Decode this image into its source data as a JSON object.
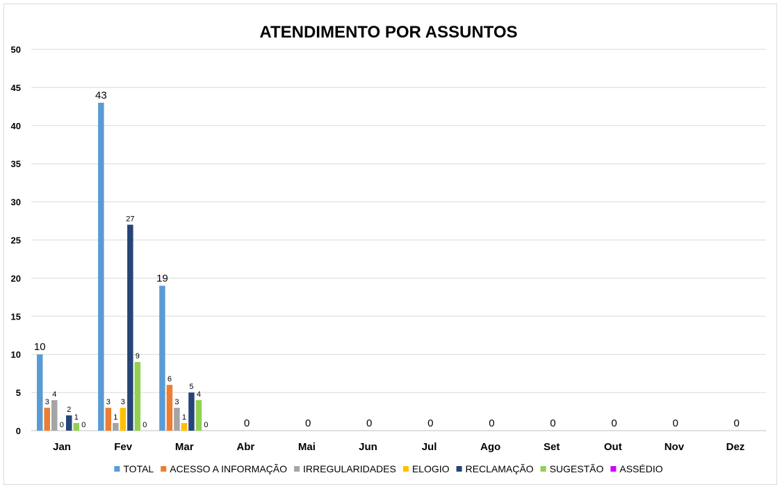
{
  "chart_data": {
    "type": "bar",
    "title": "ATENDIMENTO POR ASSUNTOS",
    "categories": [
      "Jan",
      "Fev",
      "Mar",
      "Abr",
      "Mai",
      "Jun",
      "Jul",
      "Ago",
      "Set",
      "Out",
      "Nov",
      "Dez"
    ],
    "ylim": [
      0,
      50
    ],
    "yticks": [
      0,
      5,
      10,
      15,
      20,
      25,
      30,
      35,
      40,
      45,
      50
    ],
    "grid": true,
    "legend_position": "bottom",
    "series": [
      {
        "name": "TOTAL",
        "color": "#5B9BD5",
        "values": [
          10,
          43,
          19,
          0,
          0,
          0,
          0,
          0,
          0,
          0,
          0,
          0
        ]
      },
      {
        "name": "ACESSO A INFORMAÇÃO",
        "color": "#ED7D31",
        "values": [
          3,
          3,
          6,
          null,
          null,
          null,
          null,
          null,
          null,
          null,
          null,
          null
        ]
      },
      {
        "name": "IRREGULARIDADES",
        "color": "#A5A5A5",
        "values": [
          4,
          1,
          3,
          null,
          null,
          null,
          null,
          null,
          null,
          null,
          null,
          null
        ]
      },
      {
        "name": "ELOGIO",
        "color": "#FFC000",
        "values": [
          0,
          3,
          1,
          null,
          null,
          null,
          null,
          null,
          null,
          null,
          null,
          null
        ]
      },
      {
        "name": "RECLAMAÇÃO",
        "color": "#264478",
        "values": [
          2,
          27,
          5,
          null,
          null,
          null,
          null,
          null,
          null,
          null,
          null,
          null
        ]
      },
      {
        "name": "SUGESTÃO",
        "color": "#92D050",
        "values": [
          1,
          9,
          4,
          null,
          null,
          null,
          null,
          null,
          null,
          null,
          null,
          null
        ]
      },
      {
        "name": "ASSÉDIO",
        "color": "#CC00FF",
        "values": [
          0,
          0,
          0,
          null,
          null,
          null,
          null,
          null,
          null,
          null,
          null,
          null
        ]
      }
    ]
  }
}
